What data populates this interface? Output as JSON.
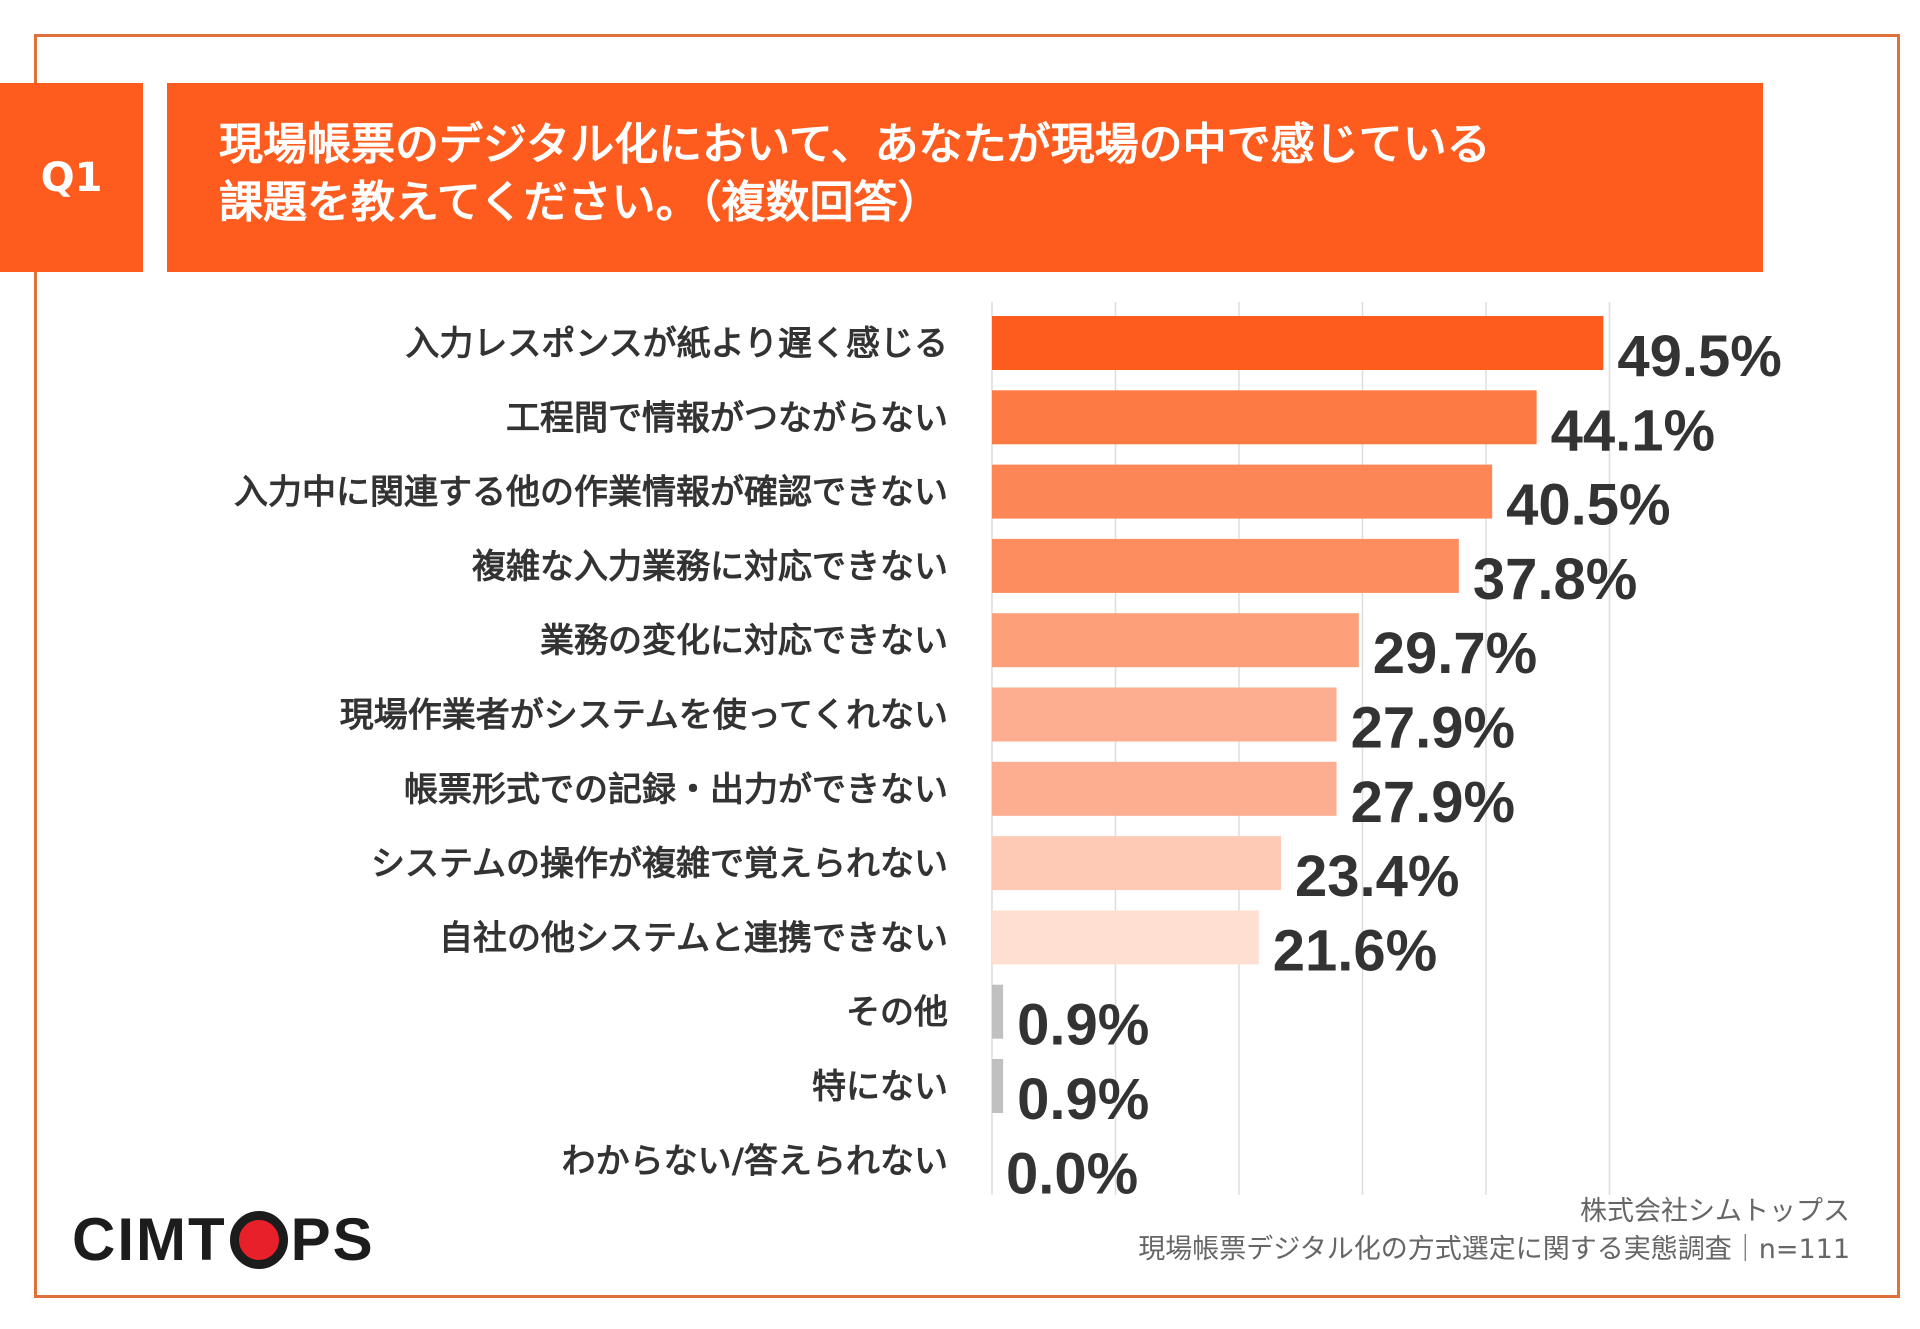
{
  "header": {
    "q_label": "Q1",
    "question_line1": "現場帳票のデジタル化において、あなたが現場の中で感じている",
    "question_line2": "課題を教えてください。（複数回答）"
  },
  "chart_data": {
    "type": "bar",
    "orientation": "horizontal",
    "title": "現場帳票のデジタル化において、あなたが現場の中で感じている課題を教えてください。（複数回答）",
    "xlabel": "",
    "ylabel": "",
    "xlim": [
      0,
      50
    ],
    "grid": true,
    "categories": [
      "入力レスポンスが紙より遅く感じる",
      "工程間で情報がつながらない",
      "入力中に関連する他の作業情報が確認できない",
      "複雑な入力業務に対応できない",
      "業務の変化に対応できない",
      "現場作業者がシステムを使ってくれない",
      "帳票形式での記録・出力ができない",
      "システムの操作が複雑で覚えられない",
      "自社の他システムと連携できない",
      "その他",
      "特にない",
      "わからない/答えられない"
    ],
    "values": [
      49.5,
      44.1,
      40.5,
      37.8,
      29.7,
      27.9,
      27.9,
      23.4,
      21.6,
      0.9,
      0.9,
      0.0
    ],
    "value_labels": [
      "49.5%",
      "44.1%",
      "40.5%",
      "37.8%",
      "29.7%",
      "27.9%",
      "27.9%",
      "23.4%",
      "21.6%",
      "0.9%",
      "0.9%",
      "0.0%"
    ],
    "colors": [
      "#fd5c1e",
      "#fd7a43",
      "#fd8656",
      "#fd8d5f",
      "#fd9f78",
      "#fdae90",
      "#fdae90",
      "#fecab5",
      "#fedfd2",
      "#c0c0c0",
      "#c0c0c0",
      "#c0c0c0"
    ]
  },
  "footer": {
    "logo_prefix": "CIMT",
    "logo_suffix": "PS",
    "company": "株式会社シムトップス",
    "survey": "現場帳票デジタル化の方式選定に関する実態調査｜n=111"
  }
}
